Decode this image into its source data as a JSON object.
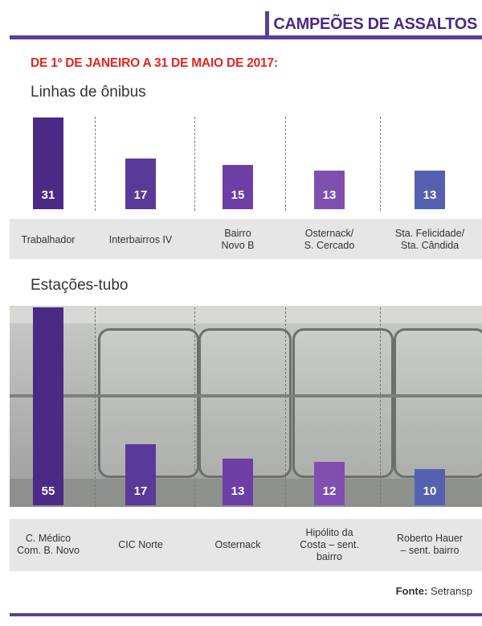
{
  "header": {
    "title": "CAMPEÕES DE ASSALTOS",
    "subtitle": "DE 1º DE JANEIRO A 31 DE MAIO DE 2017:"
  },
  "colors": {
    "brand": "#5b3e99",
    "accent_red": "#e3261f",
    "bar_shades": [
      "#4b2a86",
      "#5a3a98",
      "#6d3ea5",
      "#8050b0",
      "#5561b0"
    ]
  },
  "source": {
    "label": "Fonte:",
    "value": "Setransp"
  },
  "chart_data": [
    {
      "type": "bar",
      "title": "Linhas de ônibus",
      "categories": [
        "Trabalhador",
        "Interbairros IV",
        "Bairro\nNovo B",
        "Osternack/\nS. Cercado",
        "Sta. Felicidade/\nSta. Cândida"
      ],
      "values": [
        31,
        17,
        15,
        13,
        13
      ],
      "ylim": [
        0,
        31
      ]
    },
    {
      "type": "bar",
      "title": "Estações-tubo",
      "categories": [
        "C. Médico\nCom. B. Novo",
        "CIC Norte",
        "Osternack",
        "Hipólito da\nCosta – sent.\nbairro",
        "Roberto Hauer\n– sent. bairro"
      ],
      "values": [
        55,
        17,
        13,
        12,
        10
      ],
      "ylim": [
        0,
        55
      ]
    }
  ]
}
